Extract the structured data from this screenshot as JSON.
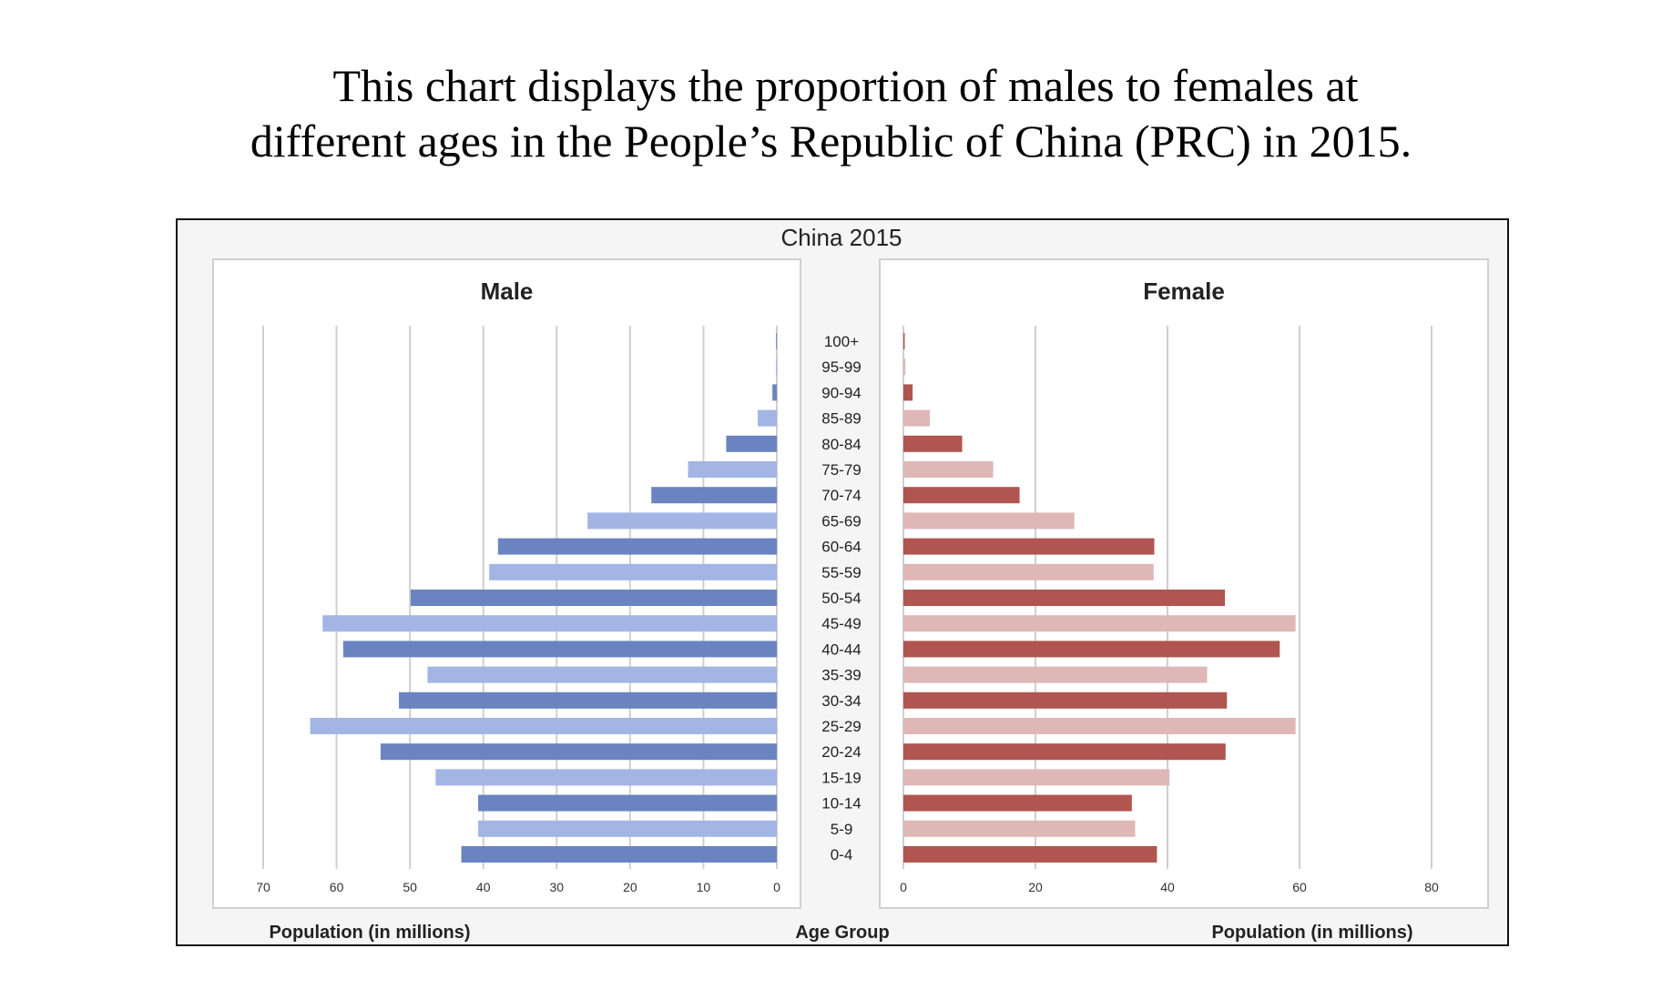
{
  "caption": {
    "line1": "This chart displays the proportion of males to females at",
    "line2": "different ages in the People’s Republic of China (PRC) in 2015."
  },
  "chart_data": {
    "type": "bar",
    "title": "China 2015",
    "center_label": "Age Group",
    "categories": [
      "100+",
      "95-99",
      "90-94",
      "85-89",
      "80-84",
      "75-79",
      "70-74",
      "65-69",
      "60-64",
      "55-59",
      "50-54",
      "45-49",
      "40-44",
      "35-39",
      "30-34",
      "25-29",
      "20-24",
      "15-19",
      "10-14",
      "5-9",
      "0-4"
    ],
    "series": [
      {
        "name": "Male",
        "xlabel": "Population (in millions)",
        "xlim": [
          0,
          70
        ],
        "ticks": [
          70,
          60,
          50,
          40,
          30,
          20,
          10,
          0
        ],
        "values": [
          0.1,
          0.1,
          0.6,
          2.6,
          6.9,
          12.1,
          17.1,
          25.8,
          38.0,
          39.2,
          49.9,
          61.9,
          59.1,
          47.6,
          51.5,
          63.6,
          54.0,
          46.5,
          40.7,
          40.7,
          43.0
        ],
        "colors": [
          "#6a84c2",
          "#a2b5e4"
        ]
      },
      {
        "name": "Female",
        "xlabel": "Population (in millions)",
        "xlim": [
          0,
          80
        ],
        "ticks": [
          0,
          20,
          40,
          60,
          80
        ],
        "values": [
          0.2,
          0.3,
          1.4,
          4.0,
          8.9,
          13.6,
          17.6,
          25.9,
          38.0,
          37.9,
          48.7,
          59.4,
          57.0,
          46.0,
          49.0,
          59.4,
          48.8,
          40.3,
          34.6,
          35.1,
          38.4
        ],
        "colors": [
          "#b05550",
          "#dfb7b7"
        ]
      }
    ],
    "grid": true
  }
}
